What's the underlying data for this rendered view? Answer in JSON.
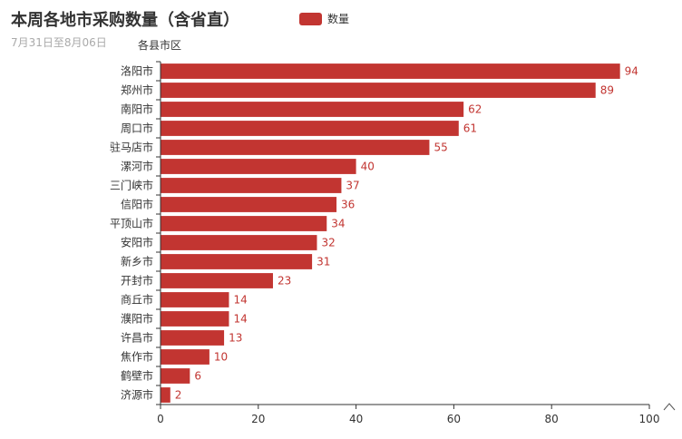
{
  "chart_data": {
    "type": "bar",
    "orientation": "horizontal",
    "title": "本周各地市采购数量（含省直）",
    "subtitle": "7月31日至8月06日",
    "ylabel": "各县市区",
    "xlabel": "",
    "legend": [
      "数量"
    ],
    "legend_position": "top",
    "categories": [
      "洛阳市",
      "郑州市",
      "南阳市",
      "周口市",
      "驻马店市",
      "漯河市",
      "三门峡市",
      "信阳市",
      "平顶山市",
      "安阳市",
      "新乡市",
      "开封市",
      "商丘市",
      "濮阳市",
      "许昌市",
      "焦作市",
      "鹤壁市",
      "济源市"
    ],
    "series": [
      {
        "name": "数量",
        "values": [
          94,
          89,
          62,
          61,
          55,
          40,
          37,
          36,
          34,
          32,
          31,
          23,
          14,
          14,
          13,
          10,
          6,
          2
        ]
      }
    ],
    "xlim": [
      0,
      100
    ],
    "xticks": [
      0,
      20,
      40,
      60,
      80,
      100
    ],
    "grid": false,
    "bar_color": "#c23531",
    "label_color": "#c23531"
  }
}
